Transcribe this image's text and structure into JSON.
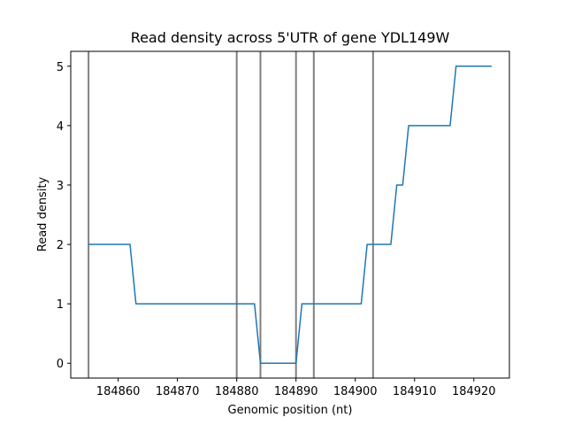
{
  "chart_data": {
    "type": "line",
    "title": "Read density across 5'UTR of gene YDL149W",
    "xlabel": "Genomic position (nt)",
    "ylabel": "Read density",
    "xlim": [
      184852,
      184926
    ],
    "ylim": [
      -0.25,
      5.25
    ],
    "xticks": [
      184860,
      184870,
      184880,
      184890,
      184900,
      184910,
      184920
    ],
    "yticks": [
      0,
      1,
      2,
      3,
      4,
      5
    ],
    "grid": false,
    "colors": {
      "series": "#1f77b4",
      "markers": "#808080"
    },
    "vertical_lines": [
      184855,
      184880,
      184884,
      184890,
      184893,
      184903
    ],
    "series": [
      {
        "x": [
          184855,
          184856,
          184857,
          184858,
          184859,
          184860,
          184861,
          184862,
          184863,
          184864,
          184865,
          184866,
          184867,
          184868,
          184869,
          184870,
          184871,
          184872,
          184873,
          184874,
          184875,
          184876,
          184877,
          184878,
          184879,
          184880,
          184881,
          184882,
          184883,
          184884,
          184885,
          184886,
          184887,
          184888,
          184889,
          184890,
          184891,
          184892,
          184893,
          184894,
          184895,
          184896,
          184897,
          184898,
          184899,
          184900,
          184901,
          184902,
          184903,
          184904,
          184905,
          184906,
          184907,
          184908,
          184909,
          184910,
          184911,
          184912,
          184913,
          184914,
          184915,
          184916,
          184917,
          184918,
          184919,
          184920,
          184921,
          184922,
          184923
        ],
        "y": [
          2,
          2,
          2,
          2,
          2,
          2,
          2,
          2,
          1,
          1,
          1,
          1,
          1,
          1,
          1,
          1,
          1,
          1,
          1,
          1,
          1,
          1,
          1,
          1,
          1,
          1,
          1,
          1,
          1,
          0,
          0,
          0,
          0,
          0,
          0,
          0,
          1,
          1,
          1,
          1,
          1,
          1,
          1,
          1,
          1,
          1,
          1,
          2,
          2,
          2,
          2,
          2,
          3,
          3,
          4,
          4,
          4,
          4,
          4,
          4,
          4,
          4,
          5,
          5,
          5,
          5,
          5,
          5,
          5
        ]
      }
    ]
  }
}
